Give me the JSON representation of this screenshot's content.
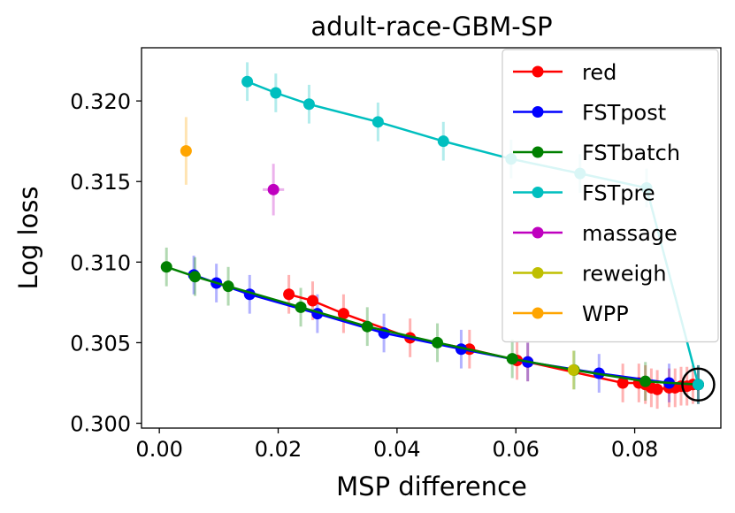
{
  "chart_data": {
    "type": "line",
    "title": "adult-race-GBM-SP",
    "xlabel": "MSP difference",
    "ylabel": "Log loss",
    "xlim": [
      -0.003,
      0.0945
    ],
    "ylim": [
      0.2997,
      0.3233
    ],
    "xticks": [
      0.0,
      0.02,
      0.04,
      0.06,
      0.08
    ],
    "xtick_labels": [
      "0.00",
      "0.02",
      "0.04",
      "0.06",
      "0.08"
    ],
    "yticks": [
      0.3,
      0.305,
      0.31,
      0.315,
      0.32
    ],
    "ytick_labels": [
      "0.300",
      "0.305",
      "0.310",
      "0.315",
      "0.320"
    ],
    "legend_position": "top-right",
    "highlight_point": {
      "x": 0.0907,
      "y": 0.3024
    },
    "series": [
      {
        "name": "red",
        "color": "#ff0000",
        "points": [
          [
            0.0218,
            0.308
          ],
          [
            0.0258,
            0.3076
          ],
          [
            0.031,
            0.3068
          ],
          [
            0.0422,
            0.3053
          ],
          [
            0.0522,
            0.3046
          ],
          [
            0.0602,
            0.3039
          ],
          [
            0.062,
            0.3038
          ],
          [
            0.078,
            0.3025
          ],
          [
            0.0807,
            0.3025
          ],
          [
            0.0818,
            0.3024
          ],
          [
            0.0828,
            0.3022
          ],
          [
            0.0838,
            0.3021
          ],
          [
            0.0858,
            0.3022
          ],
          [
            0.0868,
            0.3022
          ],
          [
            0.0878,
            0.3023
          ],
          [
            0.0888,
            0.3023
          ],
          [
            0.0898,
            0.3024
          ],
          [
            0.0907,
            0.3024
          ]
        ],
        "yerr": [
          0.0012,
          0.0012,
          0.0012,
          0.0012,
          0.0012,
          0.0012,
          0.0012,
          0.0012,
          0.0012,
          0.0012,
          0.0012,
          0.0012,
          0.0012,
          0.0012,
          0.0012,
          0.0012,
          0.0012,
          0.0012
        ]
      },
      {
        "name": "FSTpost",
        "color": "#0000ff",
        "points": [
          [
            0.0058,
            0.3092
          ],
          [
            0.0096,
            0.3087
          ],
          [
            0.0152,
            0.308
          ],
          [
            0.0266,
            0.3068
          ],
          [
            0.0378,
            0.3056
          ],
          [
            0.0508,
            0.3046
          ],
          [
            0.062,
            0.3038
          ],
          [
            0.074,
            0.3031
          ],
          [
            0.0858,
            0.3025
          ],
          [
            0.0907,
            0.3024
          ]
        ],
        "yerr": [
          0.0012,
          0.0012,
          0.0012,
          0.0012,
          0.0012,
          0.0012,
          0.0012,
          0.0012,
          0.0012,
          0.0012
        ]
      },
      {
        "name": "FSTbatch",
        "color": "#008000",
        "points": [
          [
            0.0012,
            0.3097
          ],
          [
            0.006,
            0.3091
          ],
          [
            0.0116,
            0.3085
          ],
          [
            0.0238,
            0.3072
          ],
          [
            0.035,
            0.306
          ],
          [
            0.0468,
            0.305
          ],
          [
            0.0594,
            0.304
          ],
          [
            0.0698,
            0.3033
          ],
          [
            0.0818,
            0.3026
          ],
          [
            0.0907,
            0.3024
          ]
        ],
        "yerr": [
          0.0012,
          0.0012,
          0.0012,
          0.0012,
          0.0012,
          0.0012,
          0.0012,
          0.0012,
          0.0012,
          0.0012
        ]
      },
      {
        "name": "FSTpre",
        "color": "#00bfbf",
        "points": [
          [
            0.0148,
            0.3212
          ],
          [
            0.0196,
            0.3205
          ],
          [
            0.0252,
            0.3198
          ],
          [
            0.0368,
            0.3187
          ],
          [
            0.0478,
            0.3175
          ],
          [
            0.0592,
            0.3164
          ],
          [
            0.0708,
            0.3155
          ],
          [
            0.082,
            0.3146
          ],
          [
            0.0907,
            0.3024
          ]
        ],
        "yerr": [
          0.0012,
          0.0012,
          0.0012,
          0.0012,
          0.0012,
          0.0012,
          0.0012,
          0.0012,
          0.0012
        ]
      },
      {
        "name": "massage",
        "color": "#bf00bf",
        "points": [
          [
            0.0192,
            0.3145
          ]
        ],
        "yerr": [
          0.0016
        ],
        "xerr": [
          0.0018
        ]
      },
      {
        "name": "reweigh",
        "color": "#bfbf00",
        "points": [
          [
            0.0697,
            0.3033
          ]
        ],
        "yerr": [
          0.0012
        ]
      },
      {
        "name": "WPP",
        "color": "#ffa500",
        "points": [
          [
            0.0045,
            0.3169
          ]
        ],
        "yerr": [
          0.0021
        ]
      }
    ]
  }
}
